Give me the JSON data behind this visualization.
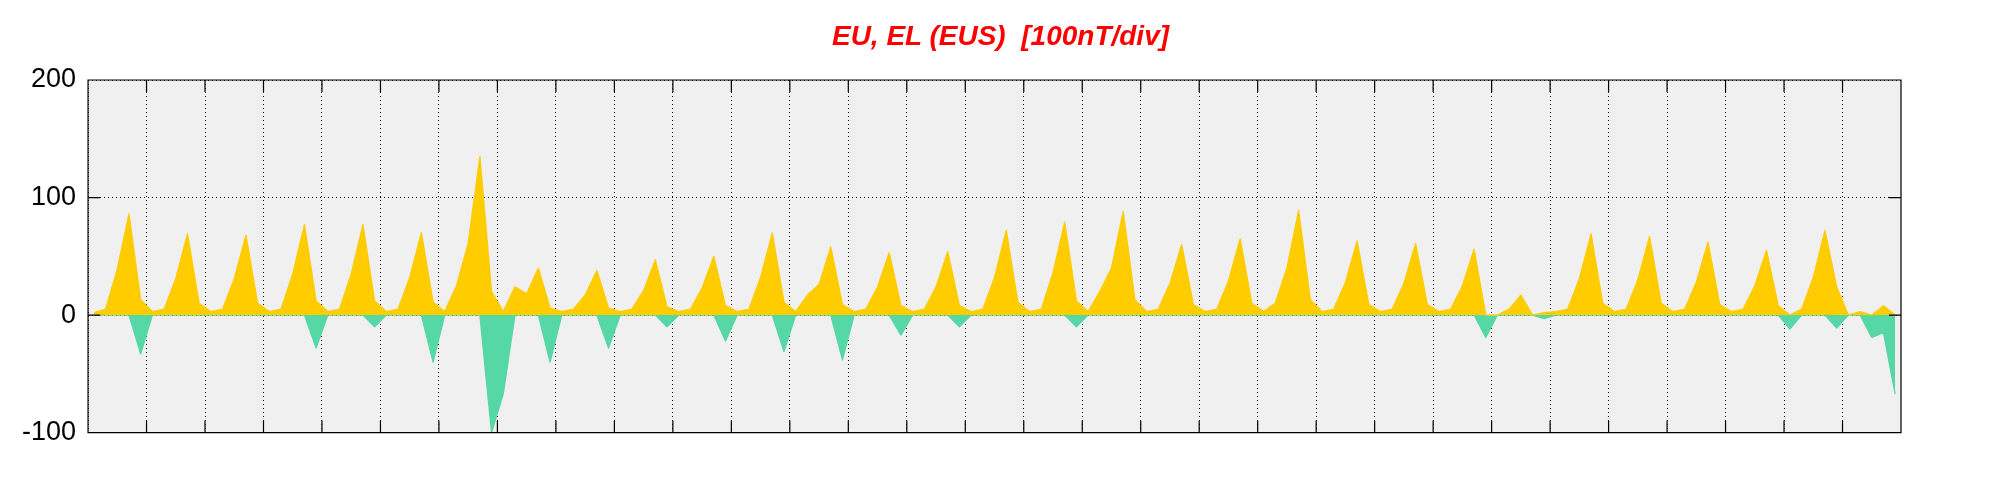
{
  "chart_data": {
    "type": "area",
    "title": "EU, EL (EUS)  [100nT/div]",
    "categories": [
      null,
      null,
      null,
      null,
      null,
      null,
      null,
      null,
      null,
      null,
      null,
      null,
      null,
      null,
      null,
      null,
      null,
      null,
      null,
      null,
      null,
      null,
      null,
      null,
      null,
      null,
      null,
      null,
      null,
      null,
      null,
      null,
      null,
      null,
      null,
      null,
      null,
      null,
      null,
      null,
      null,
      null,
      null,
      null,
      null,
      null,
      null,
      null,
      null,
      null,
      null,
      null,
      null,
      null,
      null,
      null,
      null,
      null,
      null,
      null,
      null,
      null,
      null,
      null,
      null,
      null,
      null,
      null,
      null,
      null,
      null,
      null,
      null,
      null,
      null,
      null,
      null,
      null,
      null,
      null,
      null,
      null,
      null,
      null,
      null,
      null,
      null,
      null,
      null,
      null,
      null,
      null,
      null,
      null,
      null,
      null,
      null,
      null,
      null,
      null,
      null,
      null,
      null,
      null,
      null,
      null,
      null,
      null,
      null,
      null,
      null,
      null,
      null,
      null,
      null,
      null,
      null,
      null,
      null,
      null,
      null,
      null,
      null,
      null,
      null,
      null,
      null,
      null,
      null,
      null,
      null,
      null,
      null,
      null,
      null,
      null,
      null,
      null,
      null,
      null,
      null,
      null,
      null,
      null,
      null,
      null,
      null,
      null,
      null,
      null,
      null,
      null,
      null,
      null,
      null
    ],
    "series": [
      {
        "color": "#ffcc00",
        "values": [
          2,
          5,
          39,
          86,
          13,
          3,
          5,
          31,
          69,
          10,
          3,
          5,
          31,
          68,
          10,
          3,
          5,
          35,
          77,
          12,
          3,
          5,
          35,
          77,
          12,
          3,
          5,
          32,
          70,
          11,
          3,
          25,
          61,
          135,
          20,
          3,
          24,
          18,
          40,
          6,
          3,
          5,
          17,
          38,
          6,
          3,
          5,
          21,
          47,
          7,
          3,
          5,
          23,
          50,
          8,
          3,
          5,
          32,
          70,
          11,
          3,
          17,
          26,
          58,
          9,
          3,
          5,
          24,
          53,
          8,
          3,
          5,
          24,
          54,
          8,
          3,
          5,
          32,
          72,
          11,
          3,
          5,
          36,
          79,
          12,
          3,
          20,
          40,
          88,
          13,
          3,
          5,
          27,
          60,
          9,
          3,
          5,
          29,
          65,
          10,
          3,
          10,
          40,
          89,
          13,
          3,
          5,
          28,
          63,
          9,
          3,
          5,
          27,
          61,
          9,
          3,
          5,
          25,
          56,
          0,
          0,
          5,
          17,
          0,
          2,
          3,
          5,
          31,
          69,
          10,
          3,
          5,
          30,
          67,
          10,
          3,
          5,
          28,
          62,
          9,
          3,
          5,
          25,
          55,
          8,
          0,
          5,
          32,
          72,
          24,
          0,
          3,
          0,
          8,
          0
        ]
      },
      {
        "color": "#55d8a6",
        "values": [
          0,
          0,
          0,
          0,
          -33,
          0,
          0,
          0,
          0,
          0,
          0,
          0,
          0,
          0,
          0,
          0,
          0,
          0,
          0,
          -28,
          0,
          0,
          0,
          0,
          -10,
          0,
          0,
          0,
          0,
          -40,
          0,
          0,
          0,
          0,
          -100,
          -67,
          0,
          0,
          0,
          -40,
          0,
          0,
          0,
          0,
          -28,
          0,
          0,
          0,
          0,
          -10,
          0,
          0,
          0,
          0,
          -22,
          0,
          0,
          0,
          0,
          -31,
          0,
          0,
          0,
          0,
          -38,
          0,
          0,
          0,
          0,
          -17,
          0,
          0,
          0,
          0,
          -10,
          0,
          0,
          0,
          0,
          0,
          0,
          0,
          0,
          0,
          -10,
          0,
          0,
          0,
          0,
          0,
          0,
          0,
          0,
          0,
          0,
          0,
          0,
          0,
          0,
          0,
          0,
          0,
          0,
          0,
          0,
          0,
          0,
          0,
          0,
          0,
          0,
          0,
          0,
          0,
          0,
          0,
          0,
          0,
          0,
          -19,
          0,
          0,
          0,
          0,
          -3,
          0,
          0,
          0,
          0,
          0,
          0,
          0,
          0,
          0,
          0,
          0,
          0,
          0,
          0,
          0,
          0,
          0,
          0,
          0,
          0,
          -12,
          0,
          0,
          0,
          -11,
          0,
          0,
          -19,
          -15,
          -67
        ]
      }
    ],
    "ylim": [
      -100,
      200
    ],
    "yticks": [
      -100,
      0,
      100,
      200
    ],
    "grid": true,
    "legend": false
  }
}
